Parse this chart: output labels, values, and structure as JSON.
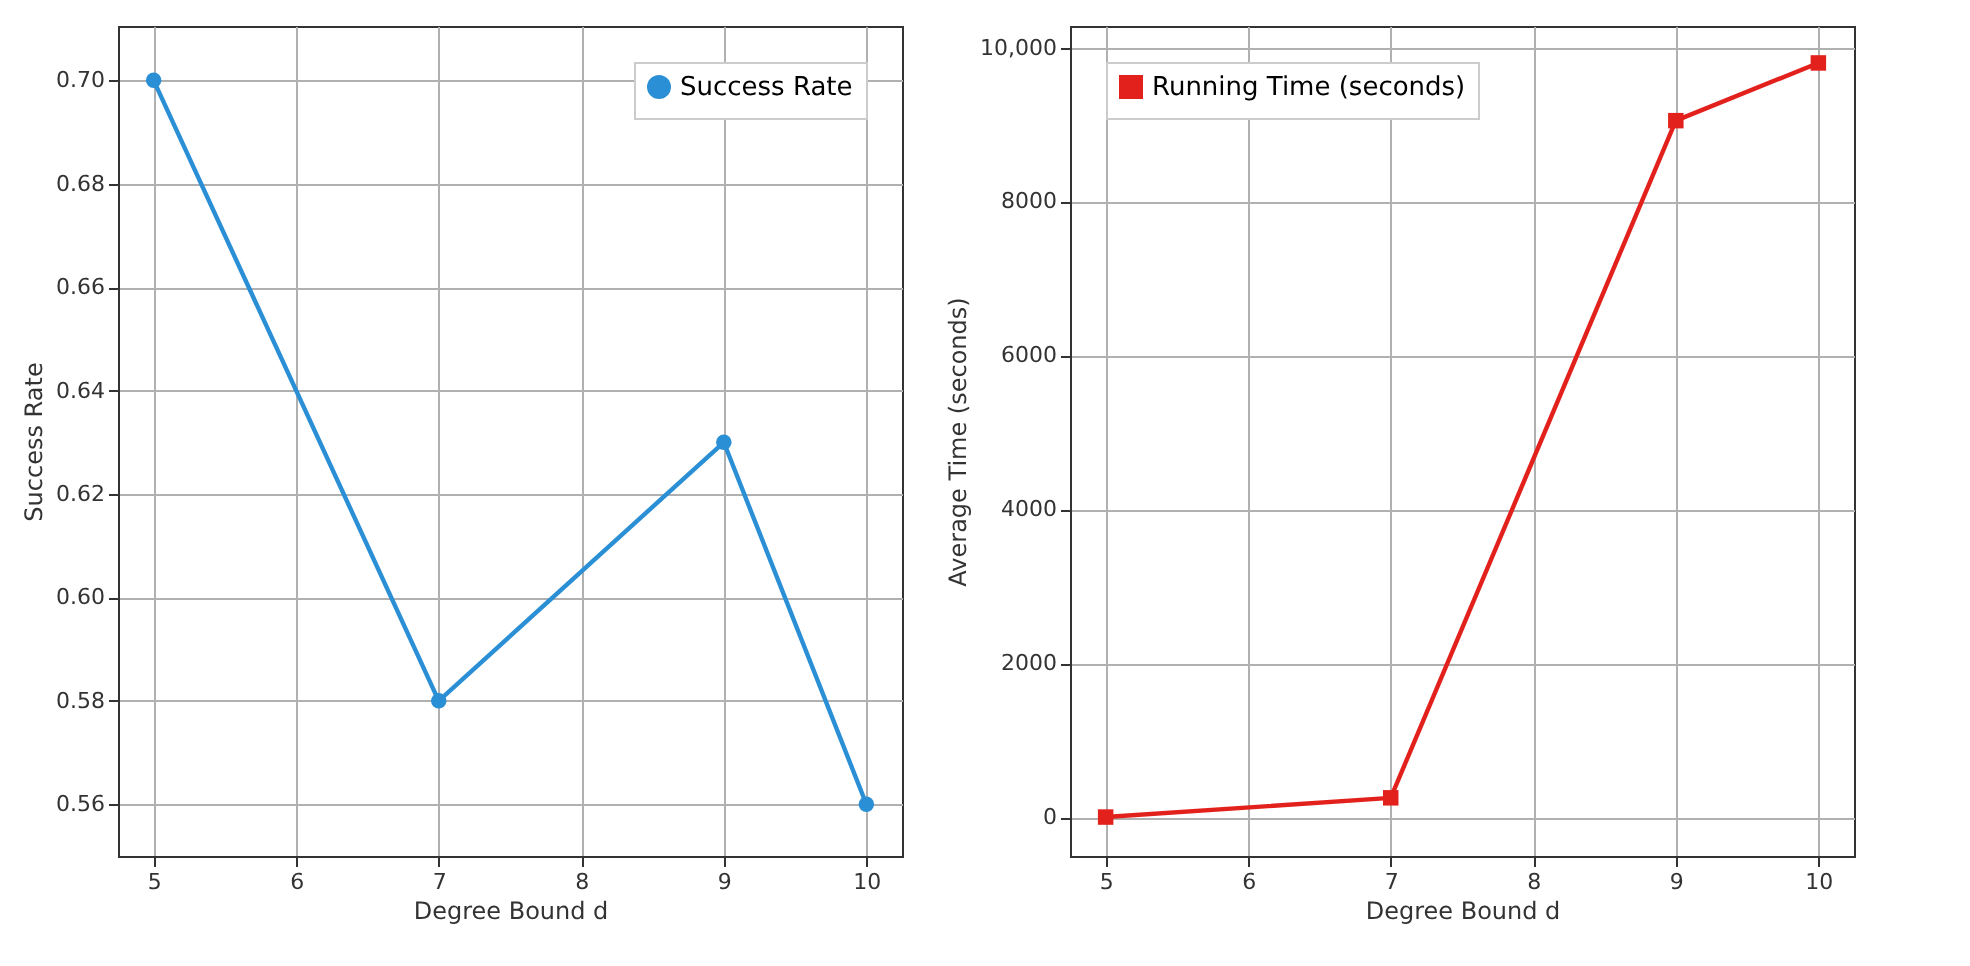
{
  "chart_data": [
    {
      "type": "line",
      "xlabel": "Degree Bound d",
      "ylabel": "Success Rate",
      "x": [
        5,
        7,
        9,
        10
      ],
      "series": [
        {
          "name": "Success Rate",
          "color": "#2b8fd6",
          "values": [
            0.7,
            0.58,
            0.63,
            0.56
          ]
        }
      ],
      "xlim": [
        4.75,
        10.25
      ],
      "xticks": [
        5,
        6,
        7,
        8,
        9,
        10
      ],
      "ylim": [
        0.55,
        0.7105
      ],
      "yticks": [
        {
          "value": 0.56,
          "label": "0.56"
        },
        {
          "value": 0.58,
          "label": "0.58"
        },
        {
          "value": 0.6,
          "label": "0.60"
        },
        {
          "value": 0.62,
          "label": "0.62"
        },
        {
          "value": 0.64,
          "label": "0.64"
        },
        {
          "value": 0.66,
          "label": "0.66"
        },
        {
          "value": 0.68,
          "label": "0.68"
        },
        {
          "value": 0.7,
          "label": "0.70"
        }
      ],
      "grid": true,
      "legend": "top right",
      "marker": "circle",
      "line_style": "solid"
    },
    {
      "type": "line",
      "xlabel": "Degree Bound d",
      "ylabel": "Average Time (seconds)",
      "x": [
        5,
        7,
        9,
        10
      ],
      "series": [
        {
          "name": "Running Time (seconds)",
          "color": "#e3211c",
          "values": [
            0,
            250,
            9050,
            9800
          ]
        }
      ],
      "xlim": [
        4.75,
        10.25
      ],
      "xticks": [
        5,
        6,
        7,
        8,
        9,
        10
      ],
      "ylim": [
        -506,
        10280
      ],
      "yticks": [
        0,
        2000,
        4000,
        6000,
        8000,
        {
          "value": 10000,
          "label": "10,000"
        }
      ],
      "grid": true,
      "legend": "top left",
      "marker": "square",
      "line_style": "solid"
    }
  ]
}
